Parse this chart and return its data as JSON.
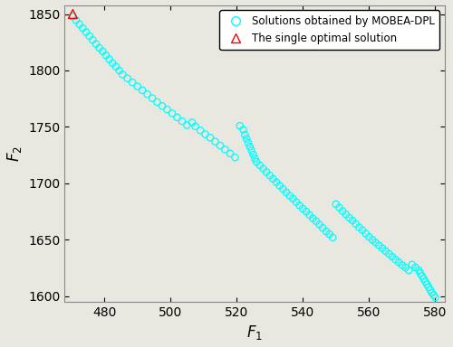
{
  "xlabel": "$F_1$",
  "ylabel": "$F_2$",
  "xlim": [
    468,
    583
  ],
  "ylim": [
    1595,
    1858
  ],
  "xticks": [
    480,
    500,
    520,
    540,
    560,
    580
  ],
  "yticks": [
    1600,
    1650,
    1700,
    1750,
    1800,
    1850
  ],
  "circle_color": "cyan",
  "triangle_color": "red",
  "triangle_point": [
    470.5,
    1850.0
  ],
  "legend_circle_label": "Solutions obtained by MOBEA-DPL",
  "legend_triangle_label": "The single optimal solution",
  "background_color": "#e8e8e0",
  "scatter_points": [
    [
      470.5,
      1848.0
    ],
    [
      471.5,
      1844.5
    ],
    [
      472.5,
      1841.0
    ],
    [
      473.5,
      1837.5
    ],
    [
      474.5,
      1834.0
    ],
    [
      475.5,
      1830.5
    ],
    [
      476.5,
      1827.0
    ],
    [
      477.5,
      1823.5
    ],
    [
      478.5,
      1820.0
    ],
    [
      479.5,
      1817.0
    ],
    [
      480.5,
      1813.5
    ],
    [
      481.5,
      1810.0
    ],
    [
      482.5,
      1806.5
    ],
    [
      483.5,
      1803.5
    ],
    [
      484.5,
      1800.0
    ],
    [
      485.5,
      1796.5
    ],
    [
      487.0,
      1793.0
    ],
    [
      488.5,
      1789.5
    ],
    [
      490.0,
      1786.0
    ],
    [
      491.5,
      1782.5
    ],
    [
      493.0,
      1779.0
    ],
    [
      494.5,
      1775.5
    ],
    [
      496.0,
      1772.0
    ],
    [
      497.5,
      1768.5
    ],
    [
      499.0,
      1765.5
    ],
    [
      500.5,
      1762.0
    ],
    [
      502.0,
      1758.5
    ],
    [
      503.5,
      1755.0
    ],
    [
      505.0,
      1751.5
    ],
    [
      506.5,
      1754.0
    ],
    [
      507.5,
      1750.5
    ],
    [
      509.0,
      1747.0
    ],
    [
      510.5,
      1743.5
    ],
    [
      512.0,
      1740.5
    ],
    [
      513.5,
      1737.0
    ],
    [
      515.0,
      1733.5
    ],
    [
      516.5,
      1730.0
    ],
    [
      518.0,
      1726.5
    ],
    [
      519.5,
      1723.0
    ],
    [
      521.0,
      1751.0
    ],
    [
      522.0,
      1747.5
    ],
    [
      522.5,
      1743.0
    ],
    [
      523.0,
      1739.5
    ],
    [
      523.5,
      1736.0
    ],
    [
      524.0,
      1732.5
    ],
    [
      524.5,
      1729.0
    ],
    [
      525.0,
      1725.5
    ],
    [
      525.5,
      1722.0
    ],
    [
      526.0,
      1719.0
    ],
    [
      527.0,
      1716.0
    ],
    [
      528.0,
      1713.0
    ],
    [
      529.0,
      1710.0
    ],
    [
      530.0,
      1707.0
    ],
    [
      531.0,
      1704.0
    ],
    [
      532.0,
      1701.0
    ],
    [
      533.0,
      1698.0
    ],
    [
      534.0,
      1695.0
    ],
    [
      535.0,
      1692.0
    ],
    [
      536.0,
      1689.0
    ],
    [
      537.0,
      1686.5
    ],
    [
      538.0,
      1683.5
    ],
    [
      539.0,
      1680.5
    ],
    [
      540.0,
      1677.5
    ],
    [
      541.0,
      1675.0
    ],
    [
      542.0,
      1672.0
    ],
    [
      543.0,
      1669.0
    ],
    [
      544.0,
      1666.5
    ],
    [
      545.0,
      1663.5
    ],
    [
      546.0,
      1660.5
    ],
    [
      547.0,
      1657.5
    ],
    [
      548.0,
      1655.0
    ],
    [
      549.0,
      1652.0
    ],
    [
      550.0,
      1681.5
    ],
    [
      551.0,
      1678.5
    ],
    [
      552.0,
      1675.5
    ],
    [
      553.0,
      1672.5
    ],
    [
      554.0,
      1669.5
    ],
    [
      555.0,
      1667.0
    ],
    [
      556.0,
      1664.0
    ],
    [
      557.0,
      1661.0
    ],
    [
      558.0,
      1658.5
    ],
    [
      559.0,
      1655.5
    ],
    [
      560.0,
      1652.5
    ],
    [
      561.0,
      1650.0
    ],
    [
      562.0,
      1647.5
    ],
    [
      563.0,
      1645.0
    ],
    [
      564.0,
      1642.5
    ],
    [
      565.0,
      1640.0
    ],
    [
      566.0,
      1637.5
    ],
    [
      567.0,
      1635.0
    ],
    [
      568.0,
      1632.5
    ],
    [
      569.0,
      1630.0
    ],
    [
      570.0,
      1627.5
    ],
    [
      571.0,
      1625.5
    ],
    [
      572.0,
      1623.0
    ],
    [
      573.0,
      1628.0
    ],
    [
      574.0,
      1625.5
    ],
    [
      575.0,
      1623.0
    ],
    [
      575.5,
      1620.5
    ],
    [
      576.0,
      1618.0
    ],
    [
      576.5,
      1615.5
    ],
    [
      577.0,
      1613.0
    ],
    [
      577.5,
      1610.5
    ],
    [
      578.0,
      1608.0
    ],
    [
      578.5,
      1605.5
    ],
    [
      579.0,
      1603.0
    ],
    [
      579.5,
      1601.0
    ],
    [
      580.0,
      1599.0
    ]
  ]
}
